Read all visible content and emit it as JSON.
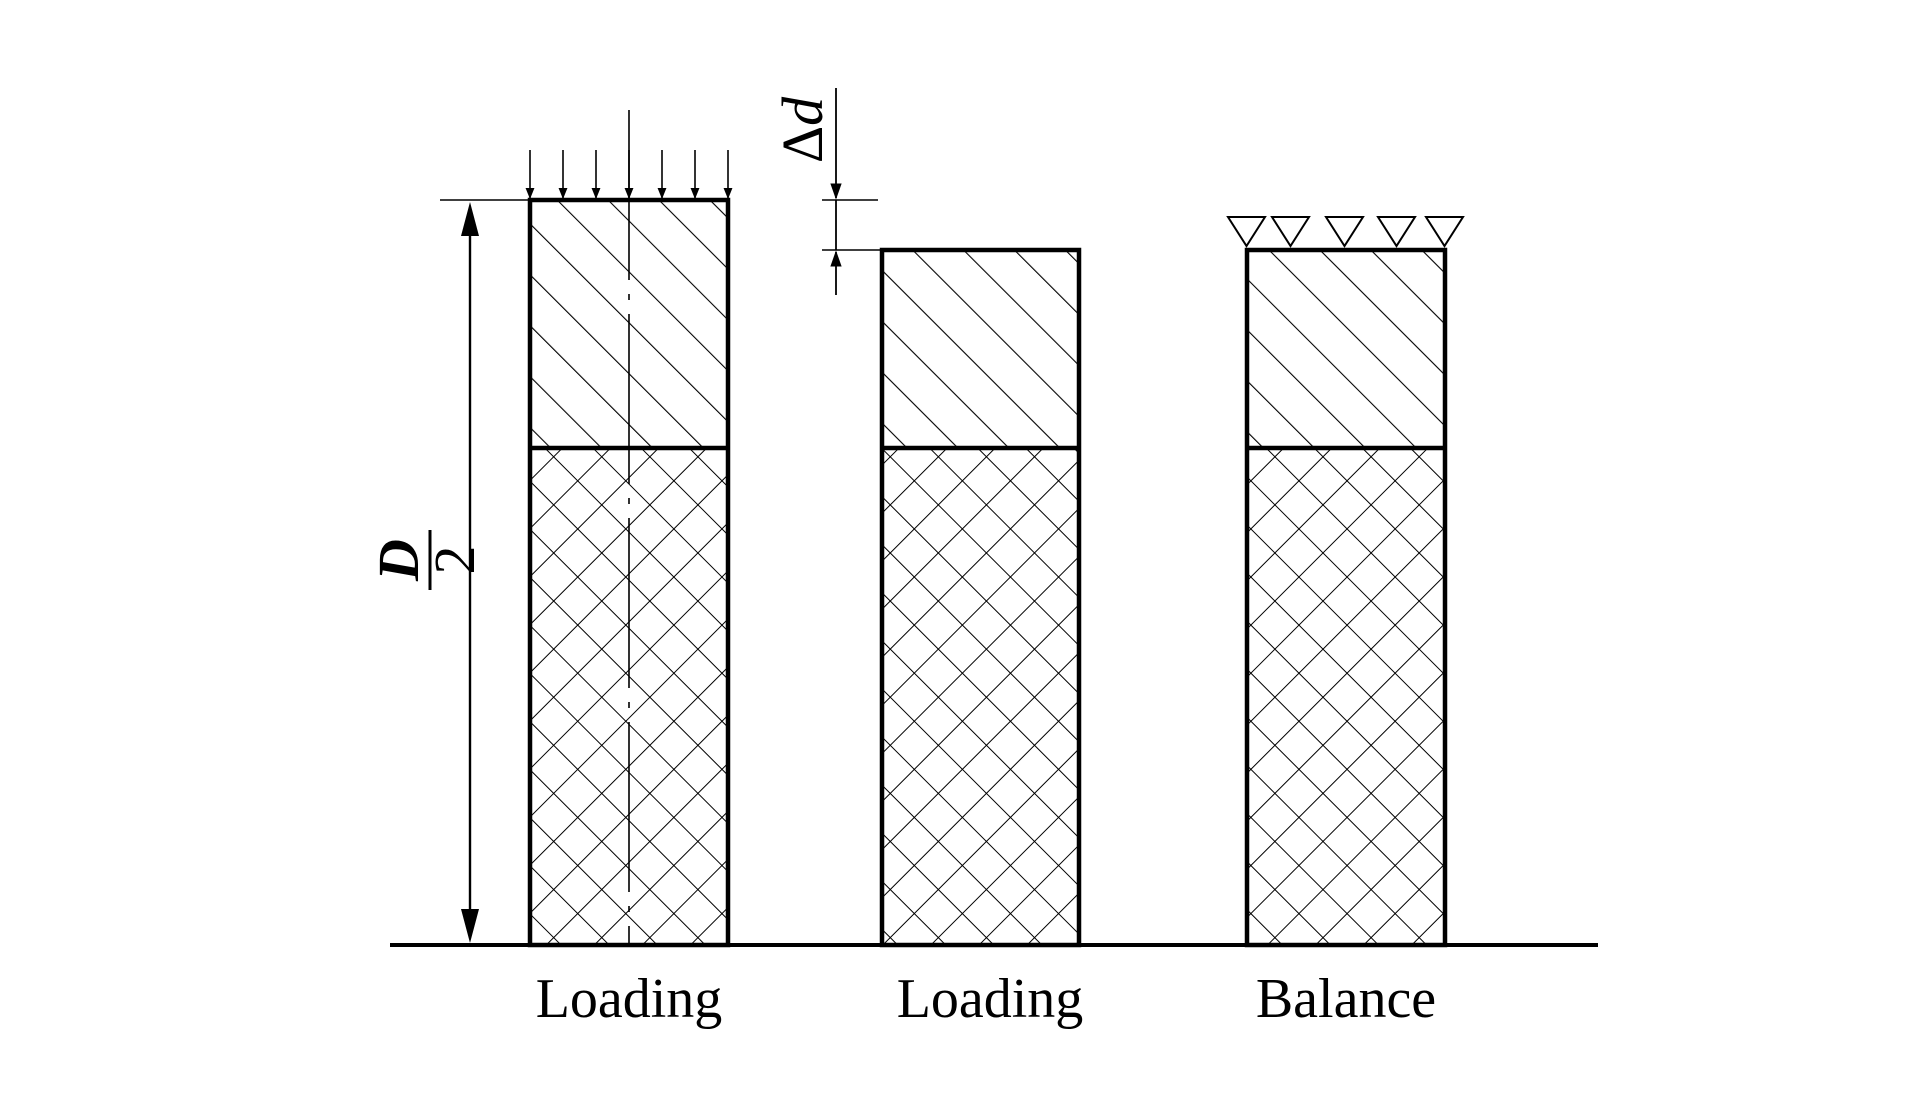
{
  "labels": {
    "column_1": "Loading",
    "column_2": "Loading",
    "column_3": "Balance"
  },
  "dimensions": {
    "height_numerator": "D",
    "height_denominator": "2",
    "settlement_delta": "Δ",
    "settlement_var": "d"
  },
  "colors": {
    "line": "#000000",
    "background": "#ffffff"
  }
}
